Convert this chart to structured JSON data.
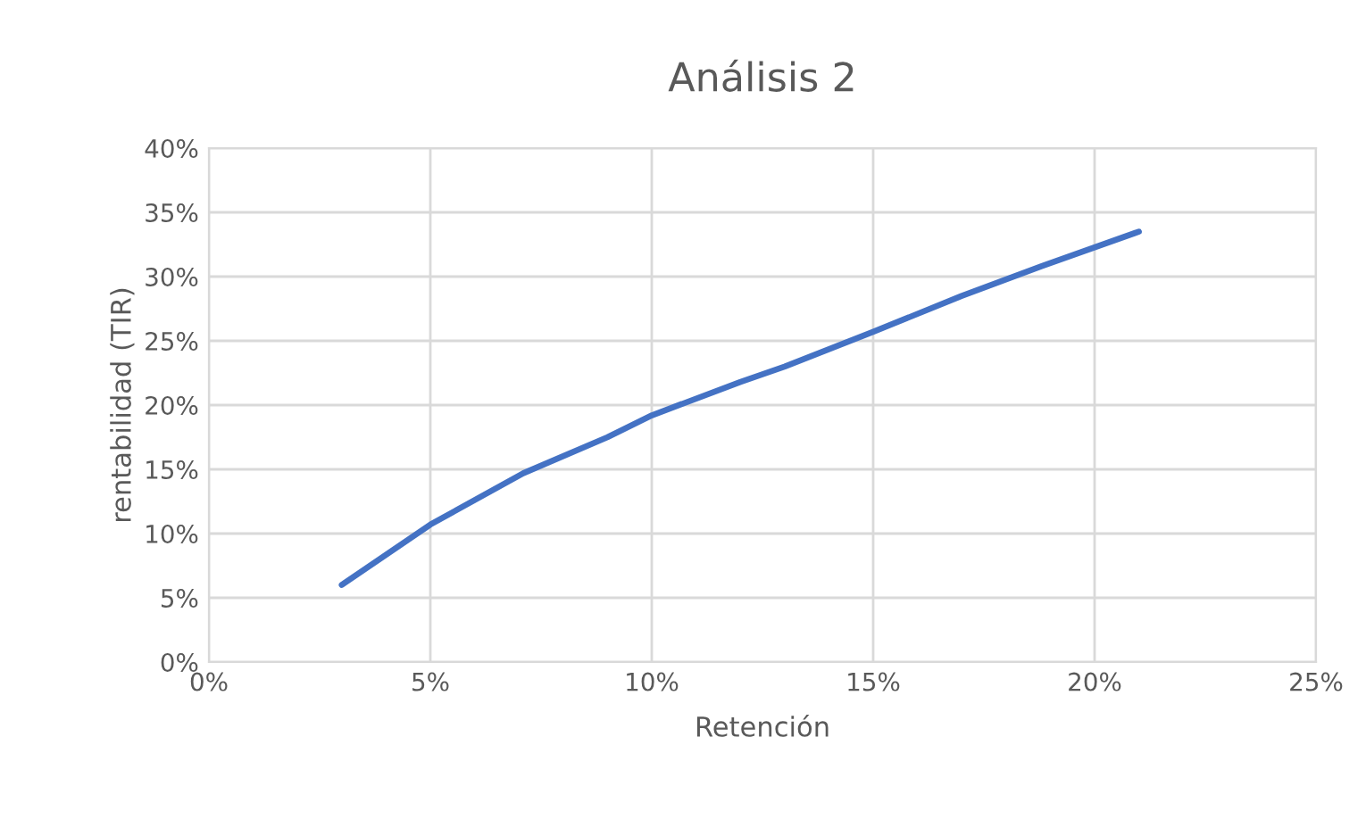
{
  "chart_data": {
    "type": "line",
    "title": "Análisis 2",
    "xlabel": "Retención",
    "ylabel": "rentabilidad (TIR)",
    "x": [
      3,
      5,
      7.1,
      9,
      10,
      12,
      13,
      15,
      17,
      18.8,
      21
    ],
    "series": [
      {
        "color": "#4472c4",
        "values": [
          6,
          10.7,
          14.7,
          17.5,
          19.2,
          21.8,
          23,
          25.7,
          28.5,
          30.8,
          33.5
        ]
      }
    ],
    "xlim": [
      0,
      25
    ],
    "ylim": [
      0,
      40
    ],
    "xticks": [
      {
        "value": 0,
        "label": "0%"
      },
      {
        "value": 5,
        "label": "5%"
      },
      {
        "value": 10,
        "label": "10%"
      },
      {
        "value": 15,
        "label": "15%"
      },
      {
        "value": 20,
        "label": "20%"
      },
      {
        "value": 25,
        "label": "25%"
      }
    ],
    "yticks": [
      {
        "value": 0,
        "label": "0%"
      },
      {
        "value": 5,
        "label": "5%"
      },
      {
        "value": 10,
        "label": "10%"
      },
      {
        "value": 15,
        "label": "15%"
      },
      {
        "value": 20,
        "label": "20%"
      },
      {
        "value": 25,
        "label": "25%"
      },
      {
        "value": 30,
        "label": "30%"
      },
      {
        "value": 35,
        "label": "35%"
      },
      {
        "value": 40,
        "label": "40%"
      }
    ],
    "grid": true
  }
}
